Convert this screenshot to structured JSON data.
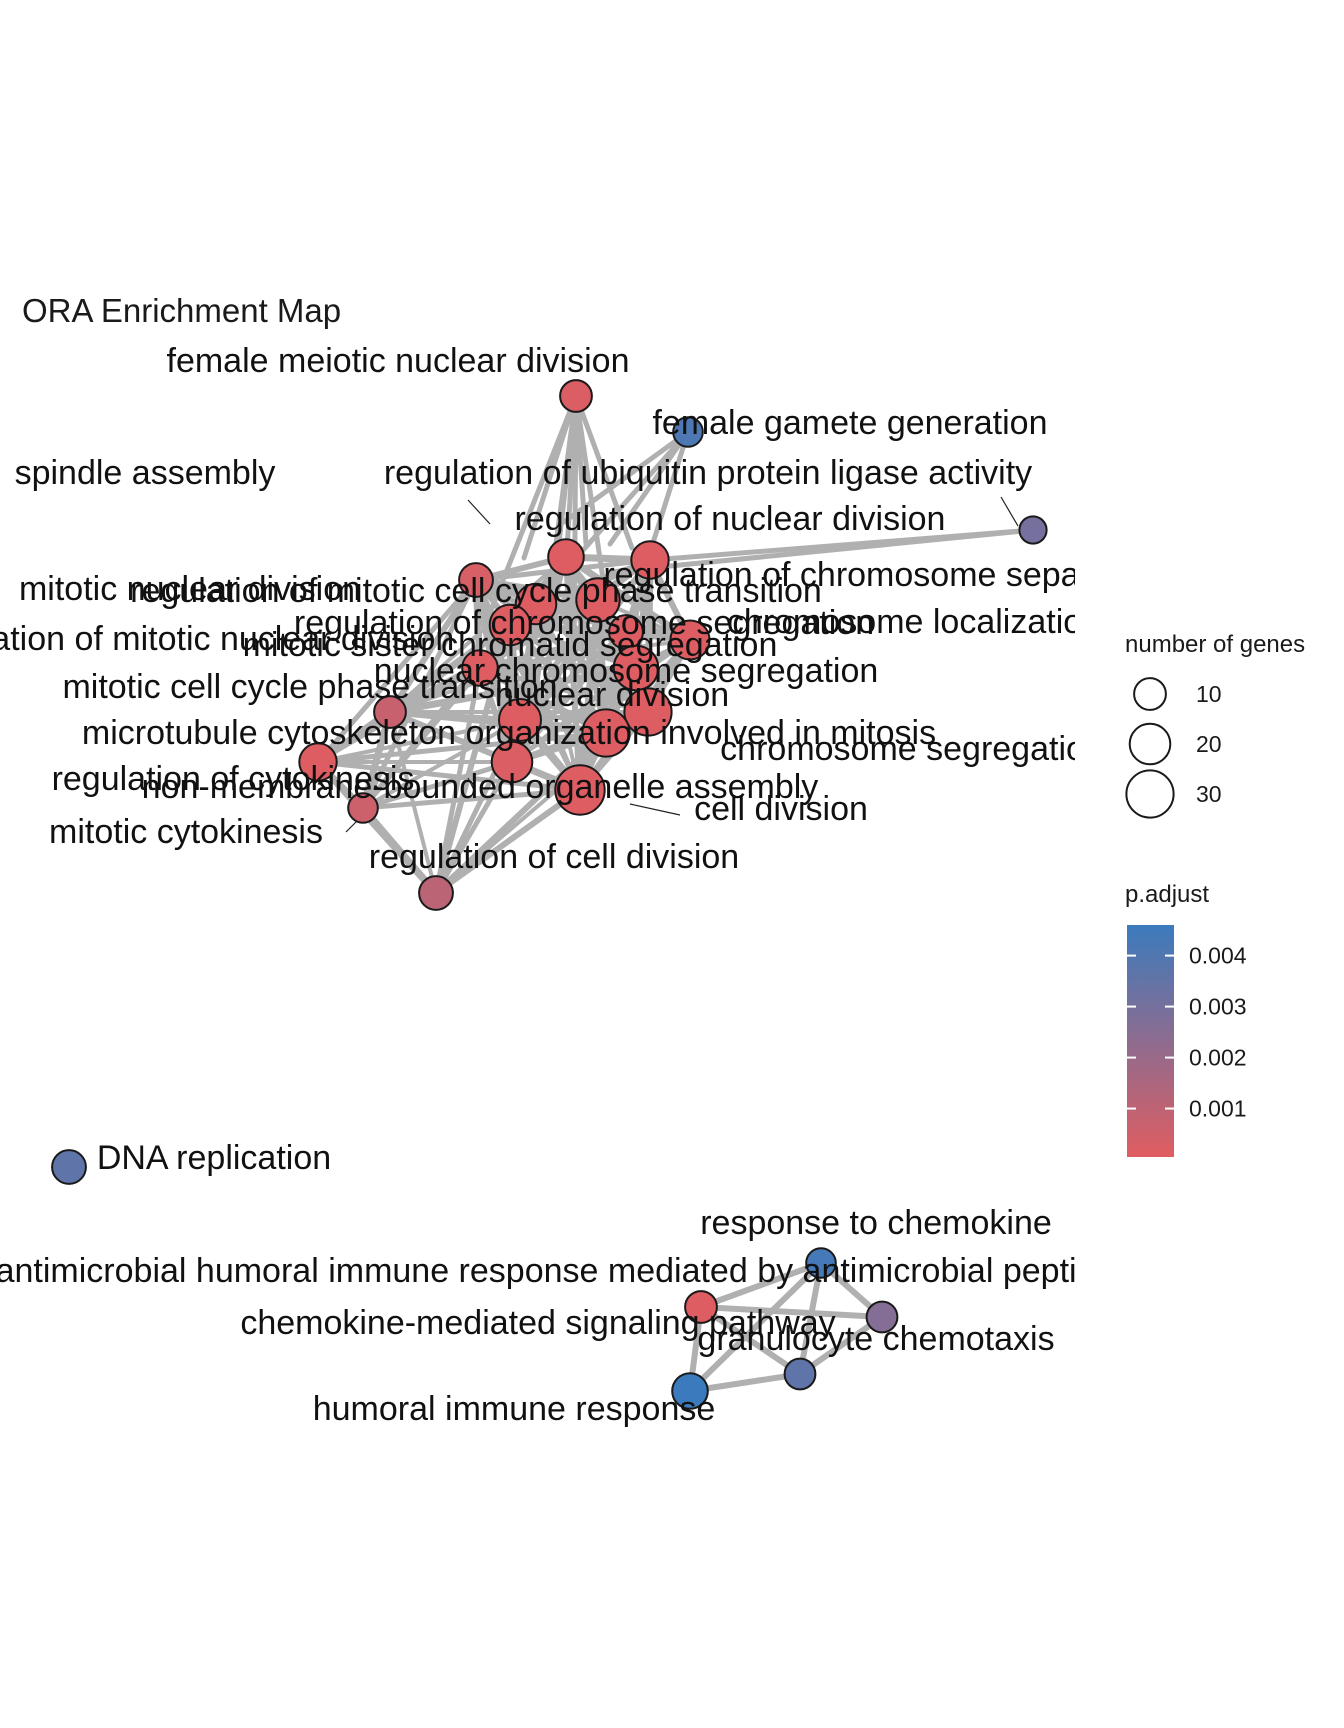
{
  "chart_data": {
    "type": "network",
    "title": "ORA Enrichment Map",
    "nodes": [
      {
        "id": "female-meiotic-nuclear-division",
        "label": "female meiotic nuclear division",
        "genes": 10,
        "p_adjust": 0.0002
      },
      {
        "id": "female-gamete-generation",
        "label": "female gamete generation",
        "genes": 8,
        "p_adjust": 0.0041
      },
      {
        "id": "spindle-assembly",
        "label": "spindle assembly",
        "genes": 12,
        "p_adjust": 0.0003
      },
      {
        "id": "reg-ubiquitin-ligase",
        "label": "regulation of ubiquitin protein ligase activity",
        "genes": 6,
        "p_adjust": 0.003
      },
      {
        "id": "reg-nuclear-division",
        "label": "regulation of nuclear division",
        "genes": 16,
        "p_adjust": 0.0001
      },
      {
        "id": "reg-chromosome-separation",
        "label": "regulation of chromosome separation",
        "genes": 14,
        "p_adjust": 0.0001
      },
      {
        "id": "mitotic-nuclear-division",
        "label": "mitotic nuclear division",
        "genes": 24,
        "p_adjust": 0.0001
      },
      {
        "id": "reg-mitotic-cell-cycle-phase",
        "label": "regulation of mitotic cell cycle phase transition",
        "genes": 20,
        "p_adjust": 0.0001
      },
      {
        "id": "reg-chromosome-segregation",
        "label": "regulation of chromosome segregation",
        "genes": 18,
        "p_adjust": 0.0001
      },
      {
        "id": "chromosome-localization",
        "label": "chromosome localization",
        "genes": 12,
        "p_adjust": 0.0001
      },
      {
        "id": "reg-mitotic-nuclear-division",
        "label": "regulation of mitotic nuclear division",
        "genes": 14,
        "p_adjust": 0.0001
      },
      {
        "id": "mitotic-sister-chromatid-seg",
        "label": "mitotic sister chromatid segregation",
        "genes": 20,
        "p_adjust": 0.0001
      },
      {
        "id": "nuclear-chromosome-segregation",
        "label": "nuclear chromosome segregation",
        "genes": 26,
        "p_adjust": 0.0001
      },
      {
        "id": "nuclear-division",
        "label": "nuclear division",
        "genes": 30,
        "p_adjust": 0.0001
      },
      {
        "id": "mitotic-cell-cycle-phase",
        "label": "mitotic cell cycle phase transition",
        "genes": 22,
        "p_adjust": 0.0001
      },
      {
        "id": "chromosome-segregation",
        "label": "chromosome segregation",
        "genes": 30,
        "p_adjust": 0.0001
      },
      {
        "id": "microtubule-cytoskeleton",
        "label": "microtubule cytoskeleton organization involved in mitosis",
        "genes": 16,
        "p_adjust": 0.0001
      },
      {
        "id": "reg-cytokinesis",
        "label": "regulation of cytokinesis",
        "genes": 10,
        "p_adjust": 0.0007
      },
      {
        "id": "membraneless-organelle",
        "label": "non-membrane-bounded organelle assembly",
        "genes": 20,
        "p_adjust": 0.0002
      },
      {
        "id": "cell-division",
        "label": "cell division",
        "genes": 34,
        "p_adjust": 0.0001
      },
      {
        "id": "mitotic-cytokinesis",
        "label": "mitotic cytokinesis",
        "genes": 8,
        "p_adjust": 0.0006
      },
      {
        "id": "reg-cell-division",
        "label": "regulation of cell division",
        "genes": 12,
        "p_adjust": 0.0011
      },
      {
        "id": "dna-replication",
        "label": "DNA replication",
        "genes": 12,
        "p_adjust": 0.0036
      },
      {
        "id": "response-to-chemokine",
        "label": "response to chemokine",
        "genes": 8,
        "p_adjust": 0.0043
      },
      {
        "id": "antimicrobial-humoral",
        "label": "antimicrobial humoral immune response mediated by antimicrobial peptide",
        "genes": 10,
        "p_adjust": 0.0001
      },
      {
        "id": "chemokine-signaling",
        "label": "chemokine-mediated signaling pathway",
        "genes": 9,
        "p_adjust": 0.0026
      },
      {
        "id": "granulocyte-chemotaxis",
        "label": "granulocyte chemotaxis",
        "genes": 9,
        "p_adjust": 0.0036
      },
      {
        "id": "humoral-immune",
        "label": "humoral immune response",
        "genes": 14,
        "p_adjust": 0.0046
      }
    ],
    "legend_size": {
      "title": "number of genes",
      "values": [
        10,
        20,
        30
      ]
    },
    "legend_color": {
      "title": "p.adjust",
      "ticks": [
        0.001,
        0.002,
        0.003,
        0.004
      ],
      "tick_labels": [
        "0.001",
        "0.002",
        "0.003",
        "0.004"
      ],
      "low_color": "#e05d61",
      "high_color": "#3b7bbd"
    },
    "edge_color": "#b0b0b0"
  }
}
